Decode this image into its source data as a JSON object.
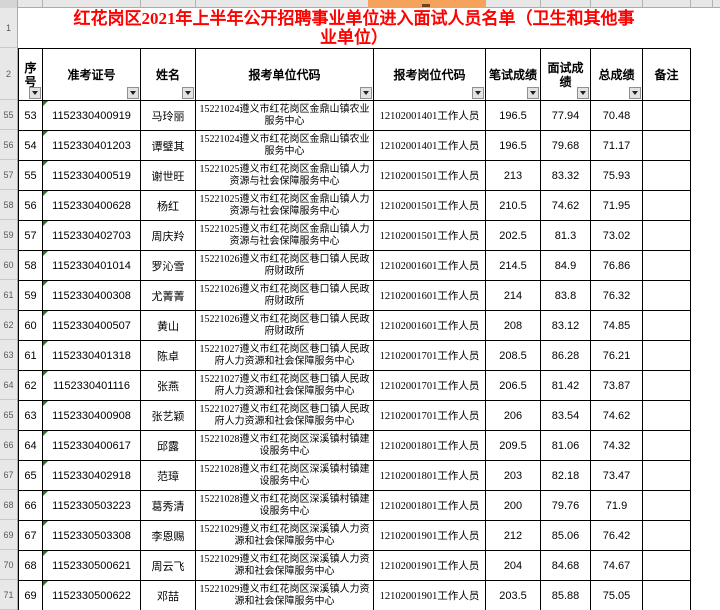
{
  "spreadsheet": {
    "gutter": {
      "title_row": "1",
      "header_row": "2"
    },
    "title": "红花岗区2021年上半年公开招聘事业单位进入面试人员名单（卫生和其他事业单位）",
    "colors": {
      "title_text": "#FF0000",
      "selected_column_header": "#F5A35C",
      "gutter_background": "#E8E8E8",
      "error_indicator_green": "#1E7B1E"
    },
    "selected_column_key": "post",
    "columns": [
      {
        "key": "no",
        "label": "序号",
        "filter": true
      },
      {
        "key": "ticket",
        "label": "准考证号",
        "filter": true
      },
      {
        "key": "name",
        "label": "姓名",
        "filter": true
      },
      {
        "key": "unit",
        "label": "报考单位代码",
        "filter": true
      },
      {
        "key": "post",
        "label": "报考岗位代码",
        "filter": true
      },
      {
        "key": "written",
        "label": "笔试成绩",
        "filter": true
      },
      {
        "key": "interview",
        "label": "面试成绩",
        "filter": true
      },
      {
        "key": "total",
        "label": "总成绩",
        "filter": true
      },
      {
        "key": "remark",
        "label": "备注",
        "filter": false
      }
    ],
    "rows": [
      {
        "gutter": "55",
        "no": "53",
        "ticket": "1152330400919",
        "name": "马玲丽",
        "unit": "15221024遵义市红花岗区金鼎山镇农业服务中心",
        "post": "12102001401工作人员",
        "written": "196.5",
        "interview": "77.94",
        "total": "70.48",
        "remark": ""
      },
      {
        "gutter": "56",
        "no": "54",
        "ticket": "1152330401203",
        "name": "谭璧其",
        "unit": "15221024遵义市红花岗区金鼎山镇农业服务中心",
        "post": "12102001401工作人员",
        "written": "196.5",
        "interview": "79.68",
        "total": "71.17",
        "remark": ""
      },
      {
        "gutter": "57",
        "no": "55",
        "ticket": "1152330400519",
        "name": "谢世旺",
        "unit": "15221025遵义市红花岗区金鼎山镇人力资源与社会保障服务中心",
        "post": "12102001501工作人员",
        "written": "213",
        "interview": "83.32",
        "total": "75.93",
        "remark": ""
      },
      {
        "gutter": "58",
        "no": "56",
        "ticket": "1152330400628",
        "name": "杨红",
        "unit": "15221025遵义市红花岗区金鼎山镇人力资源与社会保障服务中心",
        "post": "12102001501工作人员",
        "written": "210.5",
        "interview": "74.62",
        "total": "71.95",
        "remark": ""
      },
      {
        "gutter": "59",
        "no": "57",
        "ticket": "1152330402703",
        "name": "周庆羚",
        "unit": "15221025遵义市红花岗区金鼎山镇人力资源与社会保障服务中心",
        "post": "12102001501工作人员",
        "written": "202.5",
        "interview": "81.3",
        "total": "73.02",
        "remark": ""
      },
      {
        "gutter": "60",
        "no": "58",
        "ticket": "1152330401014",
        "name": "罗沁雪",
        "unit": "15221026遵义市红花岗区巷口镇人民政府财政所",
        "post": "12102001601工作人员",
        "written": "214.5",
        "interview": "84.9",
        "total": "76.86",
        "remark": ""
      },
      {
        "gutter": "61",
        "no": "59",
        "ticket": "1152330400308",
        "name": "尤菁菁",
        "unit": "15221026遵义市红花岗区巷口镇人民政府财政所",
        "post": "12102001601工作人员",
        "written": "214",
        "interview": "83.8",
        "total": "76.32",
        "remark": ""
      },
      {
        "gutter": "62",
        "no": "60",
        "ticket": "1152330400507",
        "name": "黄山",
        "unit": "15221026遵义市红花岗区巷口镇人民政府财政所",
        "post": "12102001601工作人员",
        "written": "208",
        "interview": "83.12",
        "total": "74.85",
        "remark": ""
      },
      {
        "gutter": "63",
        "no": "61",
        "ticket": "1152330401318",
        "name": "陈卓",
        "unit": "15221027遵义市红花岗区巷口镇人民政府人力资源和社会保障服务中心",
        "post": "12102001701工作人员",
        "written": "208.5",
        "interview": "86.28",
        "total": "76.21",
        "remark": ""
      },
      {
        "gutter": "64",
        "no": "62",
        "ticket": "1152330401116",
        "name": "张燕",
        "unit": "15221027遵义市红花岗区巷口镇人民政府人力资源和社会保障服务中心",
        "post": "12102001701工作人员",
        "written": "206.5",
        "interview": "81.42",
        "total": "73.87",
        "remark": ""
      },
      {
        "gutter": "65",
        "no": "63",
        "ticket": "1152330400908",
        "name": "张艺颖",
        "unit": "15221027遵义市红花岗区巷口镇人民政府人力资源和社会保障服务中心",
        "post": "12102001701工作人员",
        "written": "206",
        "interview": "83.54",
        "total": "74.62",
        "remark": ""
      },
      {
        "gutter": "66",
        "no": "64",
        "ticket": "1152330400617",
        "name": "邱露",
        "unit": "15221028遵义市红花岗区深溪镇村镇建设服务中心",
        "post": "12102001801工作人员",
        "written": "209.5",
        "interview": "81.06",
        "total": "74.32",
        "remark": ""
      },
      {
        "gutter": "67",
        "no": "65",
        "ticket": "1152330402918",
        "name": "范璋",
        "unit": "15221028遵义市红花岗区深溪镇村镇建设服务中心",
        "post": "12102001801工作人员",
        "written": "203",
        "interview": "82.18",
        "total": "73.47",
        "remark": ""
      },
      {
        "gutter": "68",
        "no": "66",
        "ticket": "1152330503223",
        "name": "葛秀清",
        "unit": "15221028遵义市红花岗区深溪镇村镇建设服务中心",
        "post": "12102001801工作人员",
        "written": "200",
        "interview": "79.76",
        "total": "71.9",
        "remark": ""
      },
      {
        "gutter": "69",
        "no": "67",
        "ticket": "1152330503308",
        "name": "李恩赐",
        "unit": "15221029遵义市红花岗区深溪镇人力资源和社会保障服务中心",
        "post": "12102001901工作人员",
        "written": "212",
        "interview": "85.06",
        "total": "76.42",
        "remark": ""
      },
      {
        "gutter": "70",
        "no": "68",
        "ticket": "1152330500621",
        "name": "周云飞",
        "unit": "15221029遵义市红花岗区深溪镇人力资源和社会保障服务中心",
        "post": "12102001901工作人员",
        "written": "204",
        "interview": "84.68",
        "total": "74.67",
        "remark": ""
      },
      {
        "gutter": "71",
        "no": "69",
        "ticket": "1152330500622",
        "name": "邓喆",
        "unit": "15221029遵义市红花岗区深溪镇人力资源和社会保障服务中心",
        "post": "12102001901工作人员",
        "written": "203.5",
        "interview": "85.88",
        "total": "75.05",
        "remark": ""
      }
    ]
  }
}
